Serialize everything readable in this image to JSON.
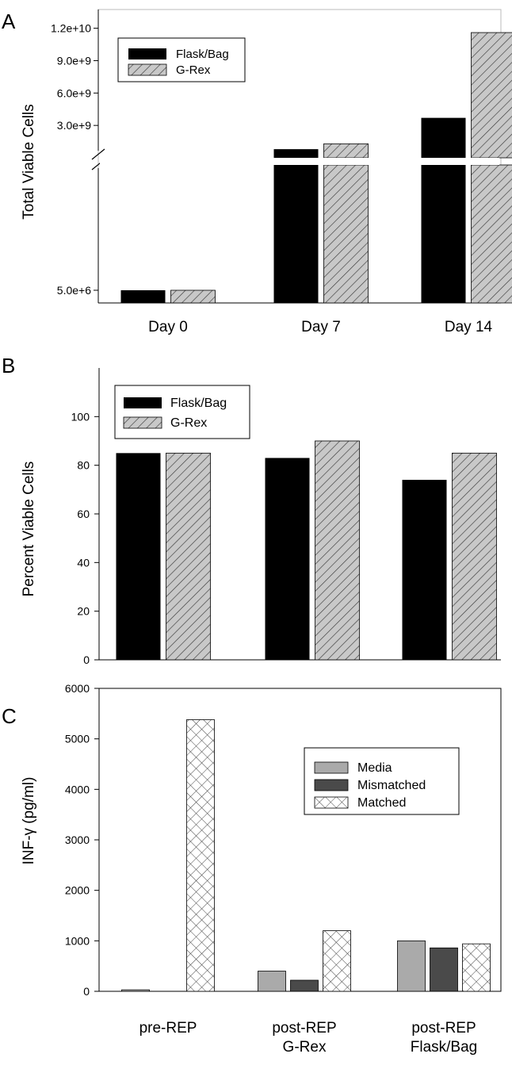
{
  "chart_data": [
    {
      "panel_label": "A",
      "type": "bar",
      "ylabel": "Total Viable Cells",
      "categories": [
        "Day 0",
        "Day 7",
        "Day 14"
      ],
      "y_ticks": [
        "5.0e+6",
        "3.0e+9",
        "6.0e+9",
        "9.0e+9",
        "1.2e+10"
      ],
      "y_tick_values": [
        5000000,
        3000000000,
        6000000000,
        9000000000,
        12000000000
      ],
      "axis_break": true,
      "lower_segment_range": [
        0,
        5000000
      ],
      "upper_segment_range": [
        0,
        13000000000
      ],
      "series": [
        {
          "name": "Flask/Bag",
          "values": [
            5000000,
            800000000,
            3700000000
          ]
        },
        {
          "name": "G-Rex",
          "values": [
            5000000,
            1300000000,
            11600000000
          ]
        }
      ],
      "legend": {
        "position": "top-left"
      },
      "grid": false
    },
    {
      "panel_label": "B",
      "type": "bar",
      "ylabel": "Percent Viable Cells",
      "categories": [
        "Day 0",
        "Day 7",
        "Day 14"
      ],
      "ylim": [
        0,
        120
      ],
      "y_ticks": [
        "0",
        "20",
        "40",
        "60",
        "80",
        "100"
      ],
      "y_tick_values": [
        0,
        20,
        40,
        60,
        80,
        100
      ],
      "series": [
        {
          "name": "Flask/Bag",
          "values": [
            85,
            83,
            74
          ]
        },
        {
          "name": "G-Rex",
          "values": [
            85,
            90,
            85
          ]
        }
      ],
      "legend": {
        "position": "top-left"
      },
      "grid": false
    },
    {
      "panel_label": "C",
      "type": "bar",
      "ylabel": "INF-γ (pg/ml)",
      "categories": [
        [
          "pre-REP"
        ],
        [
          "post-REP",
          "G-Rex"
        ],
        [
          "post-REP",
          "Flask/Bag"
        ]
      ],
      "ylim": [
        0,
        6000
      ],
      "y_ticks": [
        "0",
        "1000",
        "2000",
        "3000",
        "4000",
        "5000",
        "6000"
      ],
      "y_tick_values": [
        0,
        1000,
        2000,
        3000,
        4000,
        5000,
        6000
      ],
      "series": [
        {
          "name": "Media",
          "values": [
            30,
            400,
            1000
          ]
        },
        {
          "name": "Mismatched",
          "values": [
            0,
            220,
            860
          ]
        },
        {
          "name": "Matched",
          "values": [
            5380,
            1200,
            940
          ]
        }
      ],
      "legend": {
        "position": "top-right"
      },
      "grid": false
    }
  ],
  "colors": {
    "flask_bag": "#000000",
    "grex_fill": "#c8c8c8",
    "media": "#aaaaaa",
    "mismatched": "#4a4a4a",
    "matched_fill": "#ffffff"
  }
}
